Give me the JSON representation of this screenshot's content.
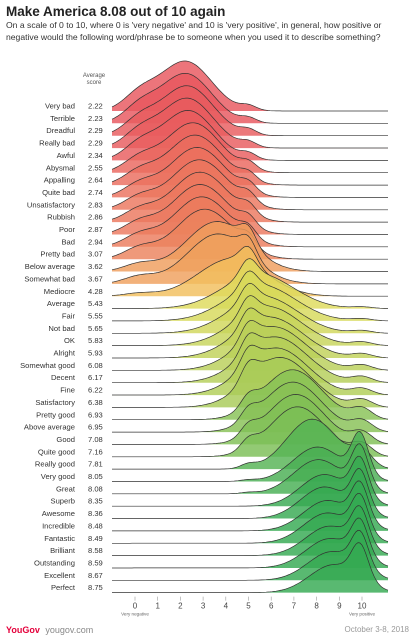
{
  "header": {
    "title": "Make America 8.08 out of 10 again",
    "subtitle": "On a scale of 0 to 10, where 0 is 'very negative' and 10 is 'very positive', in general, how positive or negative would the following word/phrase be to someone when you used it to describe something?"
  },
  "footer": {
    "brand": "YouGov",
    "url": "yougov.com",
    "date": "October 3-8, 2018"
  },
  "chart_data": {
    "type": "ridgeline",
    "score_header": "Average score",
    "x_ticks": [
      "0",
      "1",
      "2",
      "3",
      "4",
      "5",
      "6",
      "7",
      "8",
      "9",
      "10"
    ],
    "xlim": [
      0,
      10
    ],
    "x_tick_sublabels": {
      "0": "Very negative",
      "10": "Very positive"
    },
    "color_scale": {
      "negative": "#e8565e",
      "mid": "#f6e25c",
      "positive": "#35a952"
    },
    "categories": [
      "Very bad",
      "Terrible",
      "Dreadful",
      "Really bad",
      "Awful",
      "Abysmal",
      "Appalling",
      "Quite bad",
      "Unsatisfactory",
      "Rubbish",
      "Poor",
      "Bad",
      "Pretty bad",
      "Below average",
      "Somewhat bad",
      "Mediocre",
      "Average",
      "Fair",
      "Not bad",
      "OK",
      "Alright",
      "Somewhat good",
      "Decent",
      "Fine",
      "Satisfactory",
      "Pretty good",
      "Above average",
      "Good",
      "Quite good",
      "Really good",
      "Very good",
      "Great",
      "Superb",
      "Awesome",
      "Incredible",
      "Fantastic",
      "Brilliant",
      "Outstanding",
      "Excellent",
      "Perfect"
    ],
    "values": [
      "2.22",
      "2.23",
      "2.29",
      "2.29",
      "2.34",
      "2.55",
      "2.64",
      "2.74",
      "2.83",
      "2.86",
      "2.87",
      "2.94",
      "3.07",
      "3.62",
      "3.67",
      "4.28",
      "5.43",
      "5.55",
      "5.65",
      "5.83",
      "5.93",
      "6.08",
      "6.17",
      "6.22",
      "6.38",
      "6.93",
      "6.95",
      "7.08",
      "7.16",
      "7.81",
      "8.05",
      "8.08",
      "8.35",
      "8.36",
      "8.48",
      "8.49",
      "8.58",
      "8.59",
      "8.67",
      "8.75"
    ]
  }
}
